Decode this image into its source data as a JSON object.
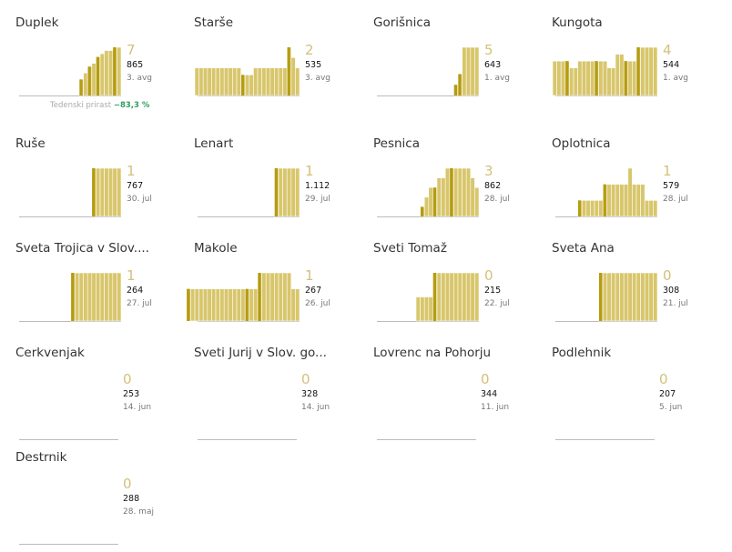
{
  "colors": {
    "fill": "#d8c66c",
    "edge": "#ffffff",
    "dark": "#b59c10",
    "base": "#bbbbbb"
  },
  "note": {
    "label": "Tedenski prirast",
    "value": "−83,3 %"
  },
  "chart_data": [
    {
      "type": "bar",
      "title": "Duplek",
      "big": "7",
      "total": "865",
      "date": "3. avg",
      "values": [
        0,
        0,
        0,
        0,
        0,
        0,
        0,
        0,
        0,
        0,
        0,
        0,
        0,
        5,
        7,
        9,
        10,
        12,
        13,
        14,
        14,
        15,
        15
      ],
      "marks": [
        13,
        15,
        17,
        21
      ]
    },
    {
      "type": "bar",
      "title": "Starše",
      "big": "2",
      "total": "535",
      "date": "3. avg",
      "values": [
        8,
        8,
        8,
        8,
        8,
        8,
        8,
        8,
        8,
        8,
        8,
        6,
        6,
        6,
        8,
        8,
        8,
        8,
        8,
        8,
        8,
        8,
        14,
        11,
        8
      ],
      "marks": [
        11,
        22
      ]
    },
    {
      "type": "bar",
      "title": "Gorišnica",
      "big": "5",
      "total": "643",
      "date": "1. avg",
      "values": [
        0,
        0,
        0,
        0,
        0,
        0,
        0,
        0,
        0,
        0,
        0,
        0,
        0,
        0,
        0,
        0,
        0,
        0,
        0,
        0,
        0,
        2,
        4,
        9,
        9,
        9,
        9
      ],
      "marks": [
        21,
        22
      ]
    },
    {
      "type": "bar",
      "title": "Kungota",
      "big": "4",
      "total": "544",
      "date": "1. avg",
      "values": [
        5,
        5,
        5,
        5,
        4,
        4,
        5,
        5,
        5,
        5,
        5,
        5,
        5,
        4,
        4,
        6,
        6,
        5,
        5,
        5,
        7,
        7,
        7,
        7,
        7
      ],
      "marks": [
        3,
        10,
        17,
        20
      ]
    },
    {
      "type": "bar",
      "title": "Ruše",
      "big": "1",
      "total": "767",
      "date": "30. jul",
      "values": [
        0,
        0,
        0,
        0,
        0,
        0,
        0,
        0,
        0,
        0,
        0,
        0,
        0,
        0,
        1,
        1,
        1,
        1,
        1,
        1,
        1
      ],
      "marks": [
        14
      ]
    },
    {
      "type": "bar",
      "title": "Lenart",
      "big": "1",
      "total": "1.112",
      "date": "29. jul",
      "values": [
        0,
        0,
        0,
        0,
        0,
        0,
        0,
        0,
        0,
        0,
        0,
        0,
        0,
        0,
        0,
        0,
        0,
        0,
        0,
        0,
        1,
        1,
        1,
        1,
        1,
        1
      ],
      "marks": [
        20
      ]
    },
    {
      "type": "bar",
      "title": "Pesnica",
      "big": "3",
      "total": "862",
      "date": "28. jul",
      "values": [
        0,
        0,
        0,
        0,
        0,
        0,
        0,
        0,
        0,
        0,
        1,
        2,
        3,
        3,
        4,
        4,
        5,
        5,
        5,
        5,
        5,
        5,
        4,
        3
      ],
      "marks": [
        10,
        13,
        17
      ]
    },
    {
      "type": "bar",
      "title": "Oplotnica",
      "big": "1",
      "total": "579",
      "date": "28. jul",
      "values": [
        0,
        0,
        0,
        0,
        0,
        0,
        1,
        1,
        1,
        1,
        1,
        1,
        2,
        2,
        2,
        2,
        2,
        2,
        3,
        2,
        2,
        2,
        1,
        1,
        1
      ],
      "marks": [
        6,
        12
      ]
    },
    {
      "type": "bar",
      "title": "Sveta Trojica v Slov....",
      "big": "1",
      "total": "264",
      "date": "27. jul",
      "values": [
        0,
        0,
        0,
        0,
        0,
        0,
        0,
        0,
        0,
        0,
        0,
        0,
        1,
        1,
        1,
        1,
        1,
        1,
        1,
        1,
        1,
        1,
        1,
        1
      ],
      "marks": [
        12
      ]
    },
    {
      "type": "bar",
      "title": "Makole",
      "big": "1",
      "total": "267",
      "date": "26. jul",
      "values": [
        2,
        2,
        2,
        2,
        2,
        2,
        2,
        2,
        2,
        2,
        2,
        2,
        2,
        2,
        2,
        2,
        2,
        3,
        3,
        3,
        3,
        3,
        3,
        3,
        3,
        2,
        2
      ],
      "marks": [
        0,
        14,
        17
      ]
    },
    {
      "type": "bar",
      "title": "Sveti Tomaž",
      "big": "0",
      "total": "215",
      "date": "22. jul",
      "values": [
        0,
        0,
        0,
        0,
        0,
        0,
        0,
        0,
        0,
        0,
        0,
        1,
        1,
        1,
        1,
        2,
        2,
        2,
        2,
        2,
        2,
        2,
        2,
        2,
        2,
        2
      ],
      "marks": [
        15
      ]
    },
    {
      "type": "bar",
      "title": "Sveta Ana",
      "big": "0",
      "total": "308",
      "date": "21. jul",
      "values": [
        0,
        0,
        0,
        0,
        0,
        0,
        0,
        0,
        0,
        0,
        1,
        1,
        1,
        1,
        1,
        1,
        1,
        1,
        1,
        1,
        1,
        1,
        1,
        1
      ],
      "marks": [
        10
      ]
    },
    {
      "type": "bar",
      "title": "Cerkvenjak",
      "big": "0",
      "total": "253",
      "date": "14. jun",
      "values": [],
      "marks": []
    },
    {
      "type": "bar",
      "title": "Sveti Jurij v Slov. go...",
      "big": "0",
      "total": "328",
      "date": "14. jun",
      "values": [],
      "marks": []
    },
    {
      "type": "bar",
      "title": "Lovrenc na Pohorju",
      "big": "0",
      "total": "344",
      "date": "11. jun",
      "values": [],
      "marks": []
    },
    {
      "type": "bar",
      "title": "Podlehnik",
      "big": "0",
      "total": "207",
      "date": "5. jun",
      "values": [],
      "marks": []
    },
    {
      "type": "bar",
      "title": "Destrnik",
      "big": "0",
      "total": "288",
      "date": "28. maj",
      "values": [],
      "marks": []
    }
  ]
}
